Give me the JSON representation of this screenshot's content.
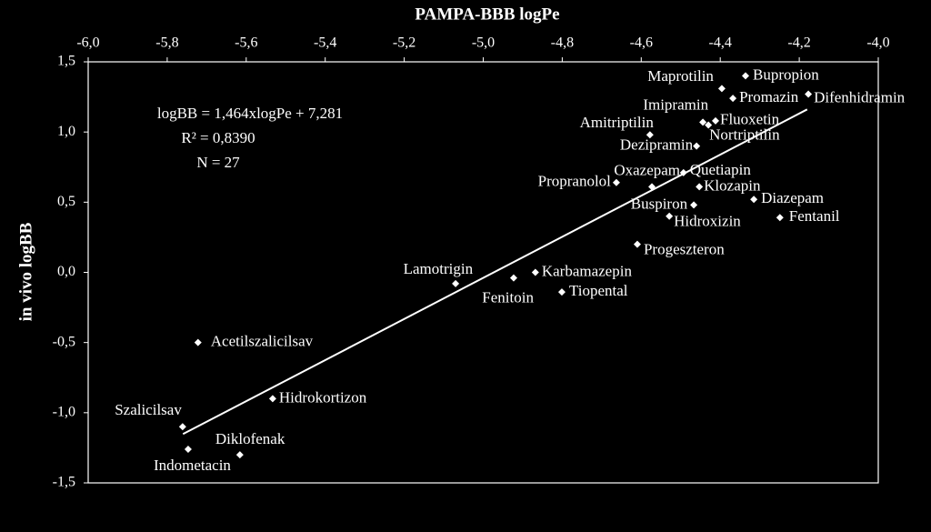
{
  "chart_data": {
    "type": "scatter",
    "title": "PAMPA-BBB logPe",
    "y_label": "in vivo logBB",
    "annotations": [
      "logBB = 1,464xlogPe + 7,281",
      "R² = 0,8390",
      "N = 27"
    ],
    "point_labels": [
      "Bupropion",
      "Maprotilin",
      "Promazin",
      "Difenhidramin",
      "Imipramin",
      "Fluoxetin",
      "Nortriptilin",
      "Amitriptilin",
      "Dezipramin",
      "Oxazepam",
      "Quetiapin",
      "Klozapin",
      "Propranolol",
      "Diazepam",
      "Buspiron",
      "Hidroxizin",
      "Fentanil",
      "Progeszteron",
      "Lamotrigin",
      "Fenitoin",
      "Karbamazepin",
      "Tiopental",
      "Acetilszalicilsav",
      "Hidrokortizon",
      "Szalicilsav",
      "Indometacin",
      "Diklofenak"
    ],
    "x": [
      -4.336,
      -4.396,
      -4.368,
      -4.177,
      -4.444,
      -4.412,
      -4.43,
      -4.578,
      -4.46,
      -4.573,
      -4.493,
      -4.453,
      -4.663,
      -4.315,
      -4.467,
      -4.529,
      -4.249,
      -4.61,
      -5.07,
      -4.923,
      -4.868,
      -4.801,
      -5.722,
      -5.533,
      -5.761,
      -5.747,
      -5.616
    ],
    "values": [
      1.4,
      1.31,
      1.24,
      1.27,
      1.07,
      1.08,
      1.05,
      0.98,
      0.9,
      0.61,
      0.71,
      0.61,
      0.64,
      0.52,
      0.48,
      0.4,
      0.39,
      0.2,
      -0.08,
      -0.04,
      0.0,
      -0.14,
      -0.5,
      -0.9,
      -1.1,
      -1.26,
      -1.3
    ],
    "color": "#ffffff",
    "trendline": {
      "x": [
        -5.76,
        -4.18
      ],
      "y": [
        -1.152,
        1.161
      ]
    },
    "xlim": [
      -6.0,
      -4.0
    ],
    "ylim": [
      -1.5,
      1.5
    ],
    "xticks": [
      {
        "value": -6.0,
        "label": "-6,0"
      },
      {
        "value": -5.8,
        "label": "-5,8"
      },
      {
        "value": -5.6,
        "label": "-5,6"
      },
      {
        "value": -5.4,
        "label": "-5,4"
      },
      {
        "value": -5.2,
        "label": "-5,2"
      },
      {
        "value": -5.0,
        "label": "-5,0"
      },
      {
        "value": -4.8,
        "label": "-4,8"
      },
      {
        "value": -4.6,
        "label": "-4,6"
      },
      {
        "value": -4.4,
        "label": "-4,4"
      },
      {
        "value": -4.2,
        "label": "-4,2"
      },
      {
        "value": -4.0,
        "label": "-4,0"
      }
    ],
    "yticks": [
      {
        "value": 1.5,
        "label": "1,5"
      },
      {
        "value": 1.0,
        "label": "1,0"
      },
      {
        "value": 0.5,
        "label": "0,5"
      },
      {
        "value": 0.0,
        "label": "0,0"
      },
      {
        "value": -0.5,
        "label": "-0,5"
      },
      {
        "value": -1.0,
        "label": "-1,0"
      },
      {
        "value": -1.5,
        "label": "-1,5"
      }
    ],
    "grid": false
  }
}
